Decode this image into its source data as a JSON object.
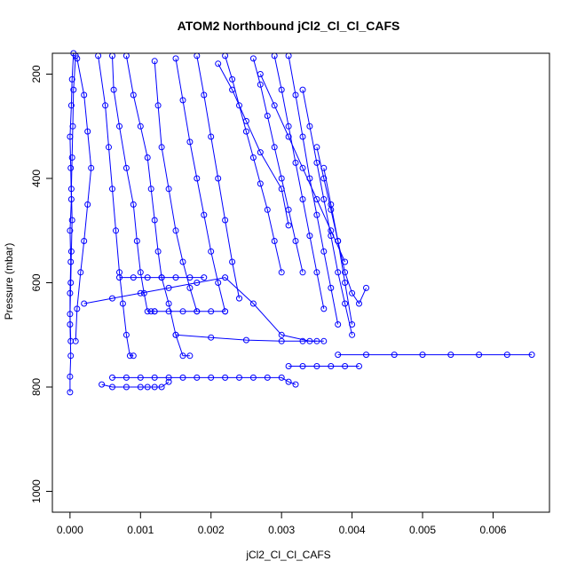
{
  "chart_data": {
    "type": "line",
    "title": "ATOM2 Northbound jCl2_Cl_Cl_CAFS",
    "xlabel": "jCl2_Cl_Cl_CAFS",
    "ylabel": "Pressure (mbar)",
    "xlim": [
      -0.00025,
      0.0068
    ],
    "ylim": [
      1040,
      160
    ],
    "y_reversed": true,
    "xticks": [
      {
        "value": 0.0,
        "label": "0.000"
      },
      {
        "value": 0.001,
        "label": "0.001"
      },
      {
        "value": 0.002,
        "label": "0.002"
      },
      {
        "value": 0.003,
        "label": "0.003"
      },
      {
        "value": 0.004,
        "label": "0.004"
      },
      {
        "value": 0.005,
        "label": "0.005"
      },
      {
        "value": 0.006,
        "label": "0.006"
      }
    ],
    "yticks": [
      {
        "value": 200,
        "label": "200"
      },
      {
        "value": 400,
        "label": "400"
      },
      {
        "value": 600,
        "label": "600"
      },
      {
        "value": 800,
        "label": "800"
      },
      {
        "value": 1000,
        "label": "1000"
      }
    ],
    "grid": false,
    "legend": "none",
    "color": "#0000ff",
    "marker": "open-circle",
    "series": [
      {
        "x": [
          5e-05,
          3e-05,
          2e-05,
          0.0,
          1e-05,
          2e-05,
          0.0,
          1e-05,
          0.0,
          0.0,
          1e-05,
          0.0,
          0.0
        ],
        "y": [
          160,
          210,
          260,
          320,
          380,
          440,
          500,
          560,
          620,
          680,
          740,
          780,
          810
        ]
      },
      {
        "x": [
          8e-05,
          5e-05,
          4e-05,
          3e-05,
          2e-05,
          3e-05,
          2e-05,
          1e-05,
          0.0,
          1e-05
        ],
        "y": [
          165,
          230,
          300,
          360,
          420,
          480,
          540,
          600,
          660,
          712
        ]
      },
      {
        "x": [
          0.0001,
          0.0002,
          0.00025,
          0.0003,
          0.00025,
          0.0002,
          0.00015,
          0.0001,
          8e-05
        ],
        "y": [
          170,
          240,
          310,
          380,
          450,
          520,
          580,
          650,
          712
        ]
      },
      {
        "x": [
          0.0004,
          0.0005,
          0.00055,
          0.0006,
          0.00065,
          0.0007,
          0.00075,
          0.0008,
          0.00085,
          0.0009
        ],
        "y": [
          165,
          260,
          340,
          420,
          500,
          580,
          640,
          700,
          740,
          740
        ]
      },
      {
        "x": [
          0.0006,
          0.00062,
          0.0007,
          0.0008,
          0.0009,
          0.00095,
          0.001,
          0.00105,
          0.0011,
          0.00115,
          0.0012
        ],
        "y": [
          165,
          230,
          300,
          380,
          450,
          520,
          580,
          620,
          655,
          655,
          655
        ]
      },
      {
        "x": [
          0.0008,
          0.0009,
          0.001,
          0.0011,
          0.00115,
          0.0012,
          0.00125,
          0.0013,
          0.0014,
          0.0015,
          0.0016,
          0.0017
        ],
        "y": [
          165,
          240,
          300,
          360,
          420,
          480,
          540,
          590,
          640,
          700,
          740,
          740
        ]
      },
      {
        "x": [
          0.0012,
          0.00125,
          0.0013,
          0.0014,
          0.0015,
          0.0016,
          0.0017,
          0.0018
        ],
        "y": [
          175,
          260,
          340,
          420,
          500,
          560,
          610,
          655
        ]
      },
      {
        "x": [
          0.0015,
          0.0016,
          0.0017,
          0.0018,
          0.0019,
          0.002,
          0.0021,
          0.0022
        ],
        "y": [
          170,
          250,
          330,
          400,
          470,
          540,
          600,
          655
        ]
      },
      {
        "x": [
          0.0018,
          0.0019,
          0.002,
          0.0021,
          0.0022,
          0.0023,
          0.0024
        ],
        "y": [
          165,
          240,
          320,
          400,
          480,
          560,
          630
        ]
      },
      {
        "x": [
          0.0022,
          0.0023,
          0.0024,
          0.0025,
          0.0026,
          0.0027,
          0.0028,
          0.0029,
          0.003
        ],
        "y": [
          165,
          210,
          260,
          310,
          360,
          410,
          460,
          520,
          580
        ]
      },
      {
        "x": [
          0.0026,
          0.0027,
          0.0028,
          0.0029,
          0.003,
          0.0031,
          0.0032,
          0.0033
        ],
        "y": [
          170,
          220,
          280,
          340,
          400,
          460,
          520,
          580
        ]
      },
      {
        "x": [
          0.0029,
          0.003,
          0.0031,
          0.0032,
          0.0033,
          0.0034,
          0.0035,
          0.0036
        ],
        "y": [
          165,
          230,
          300,
          370,
          440,
          510,
          580,
          650
        ]
      },
      {
        "x": [
          0.0031,
          0.0032,
          0.0033,
          0.0034,
          0.0035,
          0.0036,
          0.0037,
          0.0038
        ],
        "y": [
          165,
          240,
          320,
          400,
          470,
          540,
          610,
          680
        ]
      },
      {
        "x": [
          0.0033,
          0.0034,
          0.0035,
          0.0036,
          0.0037,
          0.0038,
          0.0039,
          0.004
        ],
        "y": [
          230,
          300,
          370,
          440,
          510,
          580,
          640,
          700
        ]
      },
      {
        "x": [
          0.0035,
          0.0036,
          0.0037,
          0.0038,
          0.0039,
          0.004,
          0.0041,
          0.0042
        ],
        "y": [
          340,
          400,
          460,
          520,
          580,
          620,
          640,
          610
        ]
      },
      {
        "x": [
          0.0036,
          0.0037,
          0.0038,
          0.0039,
          0.004
        ],
        "y": [
          380,
          450,
          520,
          600,
          680
        ]
      },
      {
        "x": [
          0.0002,
          0.0006,
          0.001,
          0.0014,
          0.0018,
          0.0022,
          0.0026,
          0.003,
          0.0034,
          0.0036
        ],
        "y": [
          640,
          630,
          620,
          610,
          600,
          590,
          640,
          700,
          712,
          712
        ]
      },
      {
        "x": [
          0.0015,
          0.002,
          0.0025,
          0.003,
          0.0033,
          0.0035
        ],
        "y": [
          700,
          705,
          710,
          712,
          712,
          712
        ]
      },
      {
        "x": [
          0.0006,
          0.0008,
          0.001,
          0.0012,
          0.0014,
          0.0016,
          0.0018,
          0.002,
          0.0022,
          0.0024,
          0.0026,
          0.0028,
          0.003,
          0.0031,
          0.0032
        ],
        "y": [
          782,
          782,
          782,
          782,
          782,
          782,
          782,
          782,
          782,
          782,
          782,
          782,
          782,
          790,
          795
        ]
      },
      {
        "x": [
          0.00045,
          0.0006,
          0.0008,
          0.001,
          0.0011,
          0.0012,
          0.0013,
          0.0014
        ],
        "y": [
          795,
          800,
          800,
          800,
          800,
          800,
          800,
          790
        ]
      },
      {
        "x": [
          0.0038,
          0.0042,
          0.0046,
          0.005,
          0.0054,
          0.0058,
          0.0062,
          0.00655
        ],
        "y": [
          738,
          738,
          738,
          738,
          738,
          738,
          738,
          738
        ]
      },
      {
        "x": [
          0.0031,
          0.0033,
          0.0035,
          0.0037,
          0.0039,
          0.0041
        ],
        "y": [
          760,
          760,
          760,
          760,
          760,
          760
        ]
      },
      {
        "x": [
          0.0007,
          0.0009,
          0.0011,
          0.0013,
          0.0015,
          0.0017,
          0.0019
        ],
        "y": [
          590,
          590,
          590,
          590,
          590,
          590,
          590
        ]
      },
      {
        "x": [
          0.0012,
          0.0014,
          0.0016,
          0.0018,
          0.002,
          0.0022
        ],
        "y": [
          655,
          655,
          655,
          655,
          655,
          655
        ]
      },
      {
        "x": [
          0.0021,
          0.0023,
          0.0025,
          0.0027,
          0.003,
          0.0031
        ],
        "y": [
          180,
          230,
          290,
          350,
          420,
          490
        ]
      },
      {
        "x": [
          0.0027,
          0.0029,
          0.0031,
          0.0033,
          0.0035,
          0.0037,
          0.0039
        ],
        "y": [
          200,
          260,
          320,
          380,
          440,
          500,
          560
        ]
      }
    ]
  }
}
